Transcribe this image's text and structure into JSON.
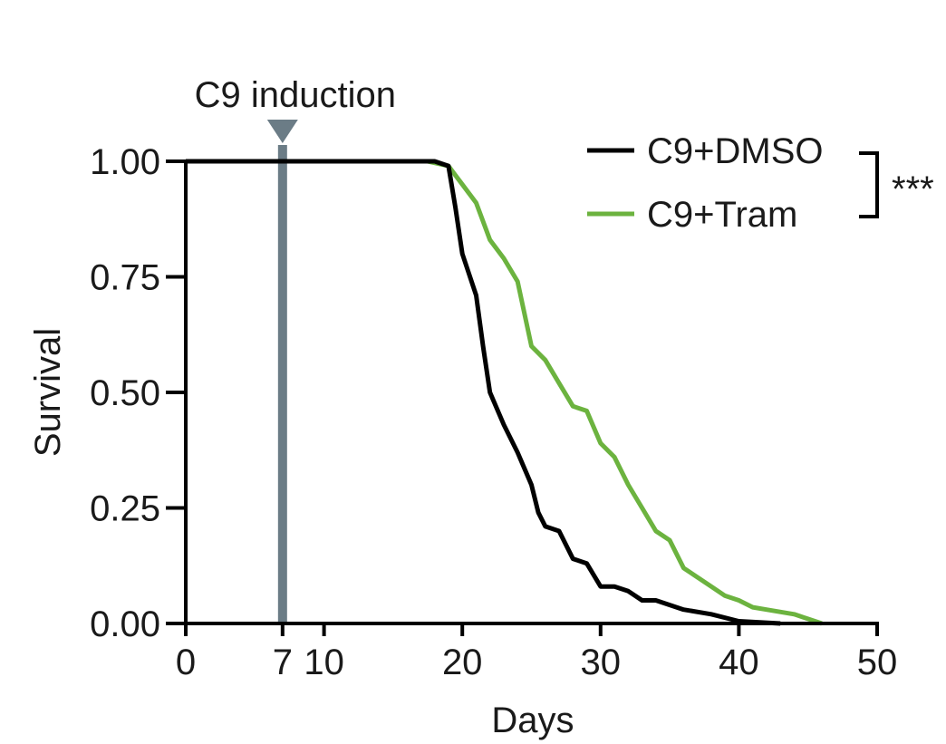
{
  "chart_data": {
    "type": "line",
    "step": true,
    "xlabel": "Days",
    "ylabel": "Survival",
    "xlim": [
      0,
      50
    ],
    "ylim": [
      0,
      1
    ],
    "x_ticks": [
      {
        "value": 0,
        "label": "0"
      },
      {
        "value": 7,
        "label": "7"
      },
      {
        "value": 10,
        "label": "10"
      },
      {
        "value": 20,
        "label": "20"
      },
      {
        "value": 30,
        "label": "30"
      },
      {
        "value": 40,
        "label": "40"
      },
      {
        "value": 50,
        "label": "50"
      }
    ],
    "y_ticks": [
      {
        "value": 0,
        "label": "0.00"
      },
      {
        "value": 0.25,
        "label": "0.25"
      },
      {
        "value": 0.5,
        "label": "0.50"
      },
      {
        "value": 0.75,
        "label": "0.75"
      },
      {
        "value": 1,
        "label": "1.00"
      }
    ],
    "annotation": {
      "label": "C9 induction",
      "x": 7,
      "color": "#6b7c86"
    },
    "significance": "***",
    "series": [
      {
        "name": "C9+DMSO",
        "color": "#000000",
        "points": [
          [
            0,
            1
          ],
          [
            18,
            1
          ],
          [
            19,
            0.99
          ],
          [
            19.5,
            0.9
          ],
          [
            20,
            0.8
          ],
          [
            21,
            0.71
          ],
          [
            21.5,
            0.6
          ],
          [
            22,
            0.5
          ],
          [
            23,
            0.43
          ],
          [
            24,
            0.37
          ],
          [
            25,
            0.3
          ],
          [
            25.5,
            0.24
          ],
          [
            26,
            0.21
          ],
          [
            27,
            0.2
          ],
          [
            28,
            0.14
          ],
          [
            29,
            0.13
          ],
          [
            30,
            0.08
          ],
          [
            31,
            0.08
          ],
          [
            32,
            0.07
          ],
          [
            33,
            0.05
          ],
          [
            34,
            0.05
          ],
          [
            35,
            0.04
          ],
          [
            36,
            0.03
          ],
          [
            38,
            0.02
          ],
          [
            40,
            0.005
          ],
          [
            43,
            0
          ]
        ]
      },
      {
        "name": "C9+Tram",
        "color": "#6cb33f",
        "points": [
          [
            17.5,
            1
          ],
          [
            19,
            0.99
          ],
          [
            21,
            0.91
          ],
          [
            22,
            0.83
          ],
          [
            23,
            0.79
          ],
          [
            24,
            0.74
          ],
          [
            25,
            0.6
          ],
          [
            26,
            0.57
          ],
          [
            27,
            0.52
          ],
          [
            28,
            0.47
          ],
          [
            29,
            0.46
          ],
          [
            30,
            0.39
          ],
          [
            31,
            0.36
          ],
          [
            32,
            0.3
          ],
          [
            33,
            0.25
          ],
          [
            34,
            0.2
          ],
          [
            35,
            0.18
          ],
          [
            36,
            0.12
          ],
          [
            38,
            0.08
          ],
          [
            39,
            0.06
          ],
          [
            40,
            0.05
          ],
          [
            41,
            0.035
          ],
          [
            42,
            0.03
          ],
          [
            44,
            0.02
          ],
          [
            46,
            0
          ]
        ]
      }
    ]
  }
}
